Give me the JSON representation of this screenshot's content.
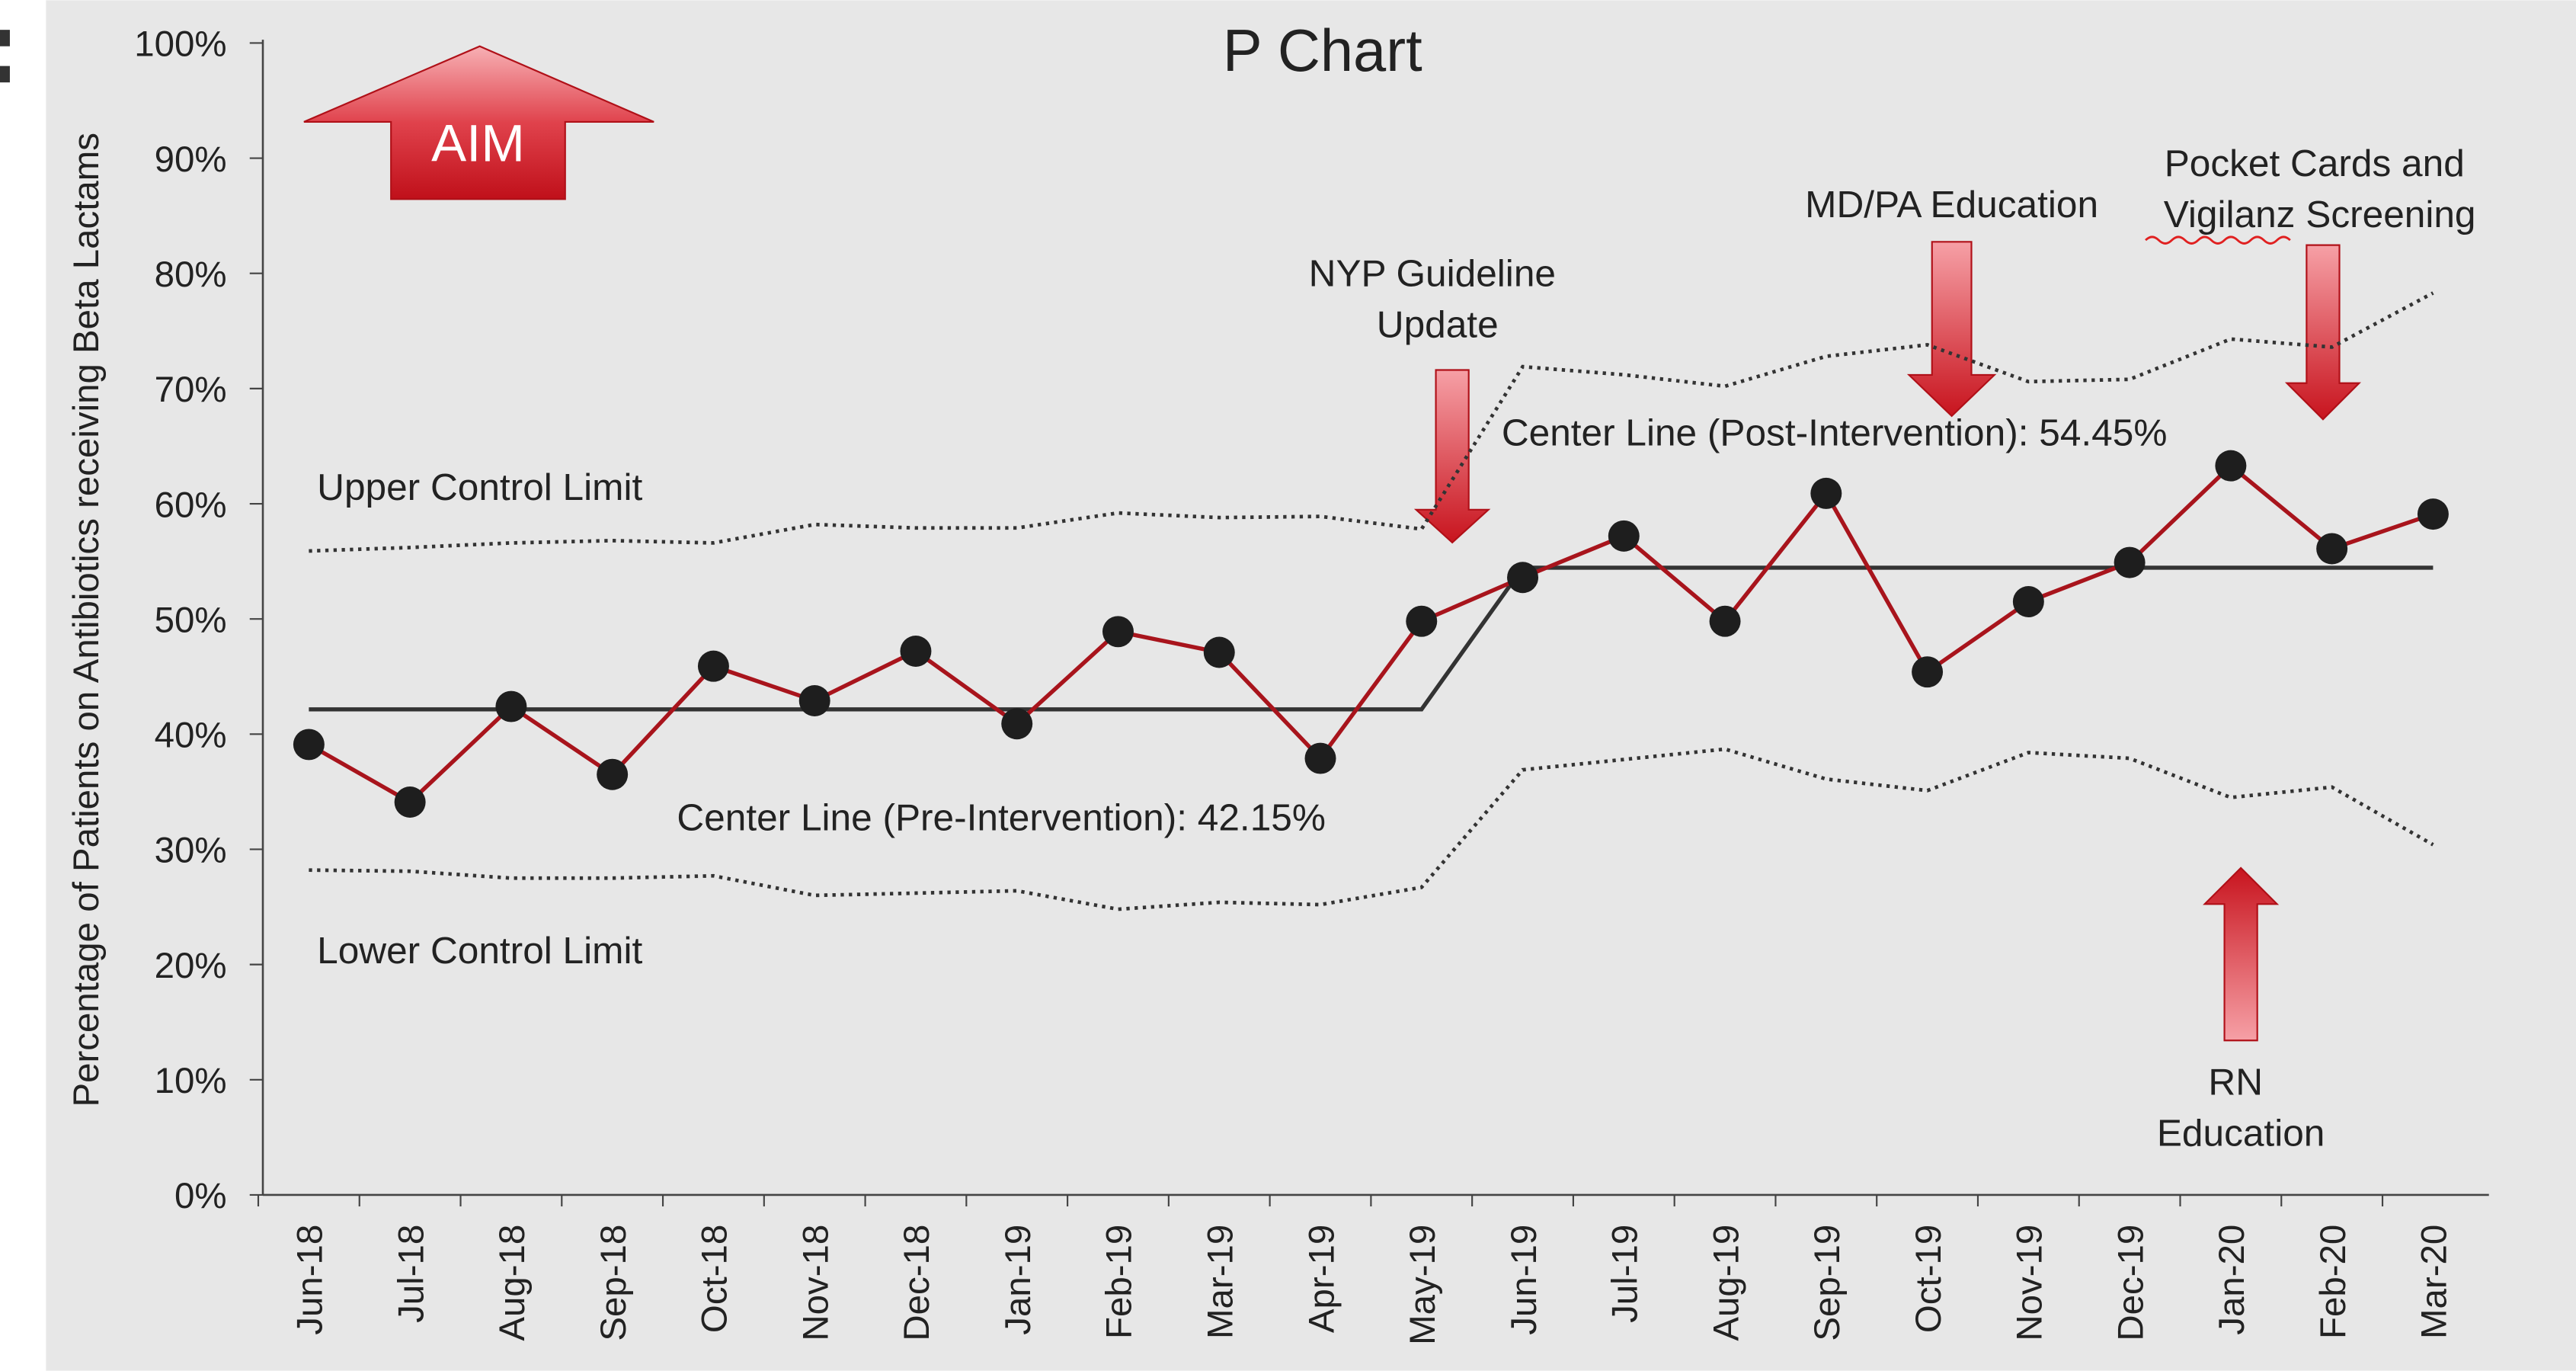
{
  "chart_data": {
    "type": "line",
    "title": "P Chart",
    "y_label": "Percentage of Patients on Antibiotics receiving Beta Lactams",
    "categories": [
      "Jun-18",
      "Jul-18",
      "Aug-18",
      "Sep-18",
      "Oct-18",
      "Nov-18",
      "Dec-18",
      "Jan-19",
      "Feb-19",
      "Mar-19",
      "Apr-19",
      "May-19",
      "Jun-19",
      "Jul-19",
      "Aug-19",
      "Sep-19",
      "Oct-19",
      "Nov-19",
      "Dec-19",
      "Jan-20",
      "Feb-20",
      "Mar-20"
    ],
    "series": [
      {
        "color": "#a8141c",
        "style": "solid-markers",
        "values": [
          39.1,
          34.1,
          42.4,
          36.5,
          45.9,
          42.9,
          47.2,
          40.9,
          48.9,
          47.1,
          37.9,
          49.8,
          53.6,
          57.2,
          49.8,
          60.9,
          45.4,
          51.5,
          54.9,
          63.3,
          56.1,
          59.1
        ]
      },
      {
        "color": "#333333",
        "style": "solid",
        "values": [
          42.15,
          42.15,
          42.15,
          42.15,
          42.15,
          42.15,
          42.15,
          42.15,
          42.15,
          42.15,
          42.15,
          42.15,
          54.45,
          54.45,
          54.45,
          54.45,
          54.45,
          54.45,
          54.45,
          54.45,
          54.45,
          54.45
        ]
      },
      {
        "color": "#333333",
        "style": "dotted",
        "values": [
          55.9,
          56.2,
          56.6,
          56.8,
          56.6,
          58.2,
          57.9,
          57.9,
          59.2,
          58.8,
          58.9,
          57.8,
          71.9,
          71.2,
          70.2,
          72.8,
          73.8,
          70.6,
          70.8,
          74.3,
          73.6,
          78.3
        ]
      },
      {
        "color": "#333333",
        "style": "dotted",
        "values": [
          28.2,
          28.1,
          27.5,
          27.5,
          27.7,
          26.0,
          26.2,
          26.4,
          24.8,
          25.4,
          25.2,
          26.7,
          36.9,
          37.8,
          38.7,
          36.1,
          35.1,
          38.4,
          37.9,
          34.5,
          35.4,
          30.4
        ]
      }
    ],
    "ylim": [
      0,
      100
    ],
    "yticks": [
      {
        "value": 0,
        "label": "0%"
      },
      {
        "value": 10,
        "label": "10%"
      },
      {
        "value": 20,
        "label": "20%"
      },
      {
        "value": 30,
        "label": "30%"
      },
      {
        "value": 40,
        "label": "40%"
      },
      {
        "value": 50,
        "label": "50%"
      },
      {
        "value": 60,
        "label": "60%"
      },
      {
        "value": 70,
        "label": "70%"
      },
      {
        "value": 80,
        "label": "80%"
      },
      {
        "value": 90,
        "label": "90%"
      },
      {
        "value": 100,
        "label": "100%"
      }
    ],
    "annotations": {
      "aim": "AIM",
      "ucl": "Upper Control Limit",
      "lcl": "Lower Control Limit",
      "center_pre": "Center Line (Pre-Intervention): 42.15%",
      "center_post": "Center Line (Post-Intervention): 54.45%",
      "nyp": [
        "NYP Guideline",
        "Update"
      ],
      "mdpa": "MD/PA Education",
      "pocket": [
        "Pocket Cards and",
        "Vigilanz Screening"
      ],
      "rn": [
        "RN",
        "Education"
      ]
    }
  }
}
